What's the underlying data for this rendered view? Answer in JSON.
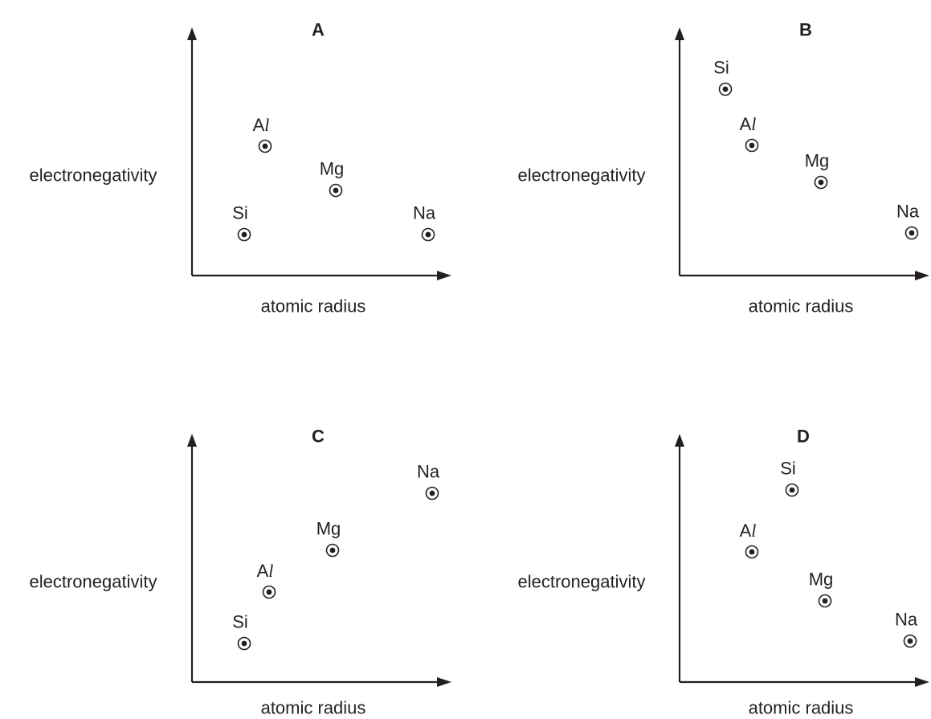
{
  "chart_data": [
    {
      "type": "scatter",
      "title": "A",
      "xlabel": "atomic radius",
      "ylabel": "electronegativity",
      "points": [
        {
          "label": "Al",
          "x": 2,
          "y": 3
        },
        {
          "label": "Mg",
          "x": 3,
          "y": 2
        },
        {
          "label": "Si",
          "x": 1,
          "y": 1
        },
        {
          "label": "Na",
          "x": 4,
          "y": 1
        }
      ]
    },
    {
      "type": "scatter",
      "title": "B",
      "xlabel": "atomic radius",
      "ylabel": "electronegativity",
      "points": [
        {
          "label": "Si",
          "x": 1,
          "y": 4
        },
        {
          "label": "Al",
          "x": 2,
          "y": 3
        },
        {
          "label": "Mg",
          "x": 3,
          "y": 2
        },
        {
          "label": "Na",
          "x": 4,
          "y": 1
        }
      ]
    },
    {
      "type": "scatter",
      "title": "C",
      "xlabel": "atomic radius",
      "ylabel": "electronegativity",
      "points": [
        {
          "label": "Na",
          "x": 4,
          "y": 4
        },
        {
          "label": "Mg",
          "x": 3,
          "y": 3
        },
        {
          "label": "Al",
          "x": 2,
          "y": 2
        },
        {
          "label": "Si",
          "x": 1,
          "y": 1
        }
      ]
    },
    {
      "type": "scatter",
      "title": "D",
      "xlabel": "atomic radius",
      "ylabel": "electronegativity",
      "points": [
        {
          "label": "Si",
          "x": 3,
          "y": 4
        },
        {
          "label": "Al",
          "x": 2,
          "y": 3
        },
        {
          "label": "Mg",
          "x": 4,
          "y": 2
        },
        {
          "label": "Na",
          "x": 5,
          "y": 1
        }
      ]
    }
  ]
}
